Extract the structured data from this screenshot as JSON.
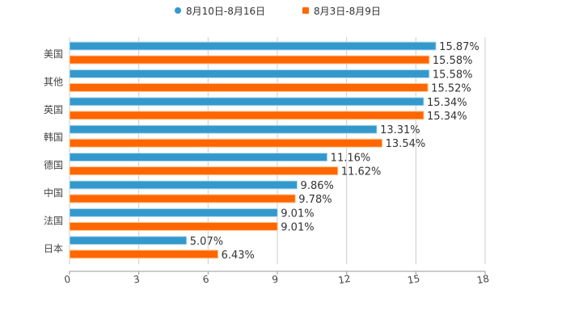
{
  "chart_data": {
    "type": "bar",
    "orientation": "horizontal",
    "categories": [
      "美国",
      "其他",
      "英国",
      "韩国",
      "德国",
      "中国",
      "法国",
      "日本"
    ],
    "series": [
      {
        "name": "8月10日-8月16日",
        "color": "#3399cc",
        "values": [
          15.87,
          15.58,
          15.34,
          13.31,
          11.16,
          9.86,
          9.01,
          5.07
        ],
        "labels": [
          "15.87%",
          "15.58%",
          "15.34%",
          "13.31%",
          "11.16%",
          "9.86%",
          "9.01%",
          "5.07%"
        ]
      },
      {
        "name": "8月3日-8月9日",
        "color": "#ff6600",
        "values": [
          15.58,
          15.52,
          15.34,
          13.54,
          11.62,
          9.78,
          9.01,
          6.43
        ],
        "labels": [
          "15.58%",
          "15.52%",
          "15.34%",
          "13.54%",
          "11.62%",
          "9.78%",
          "9.01%",
          "6.43%"
        ]
      }
    ],
    "xlim": [
      0,
      18
    ],
    "xticks": [
      "0",
      "3",
      "6",
      "9",
      "12",
      "15",
      "18"
    ],
    "grid": true,
    "legend": "top-center",
    "title": "",
    "xlabel": "",
    "ylabel": ""
  }
}
